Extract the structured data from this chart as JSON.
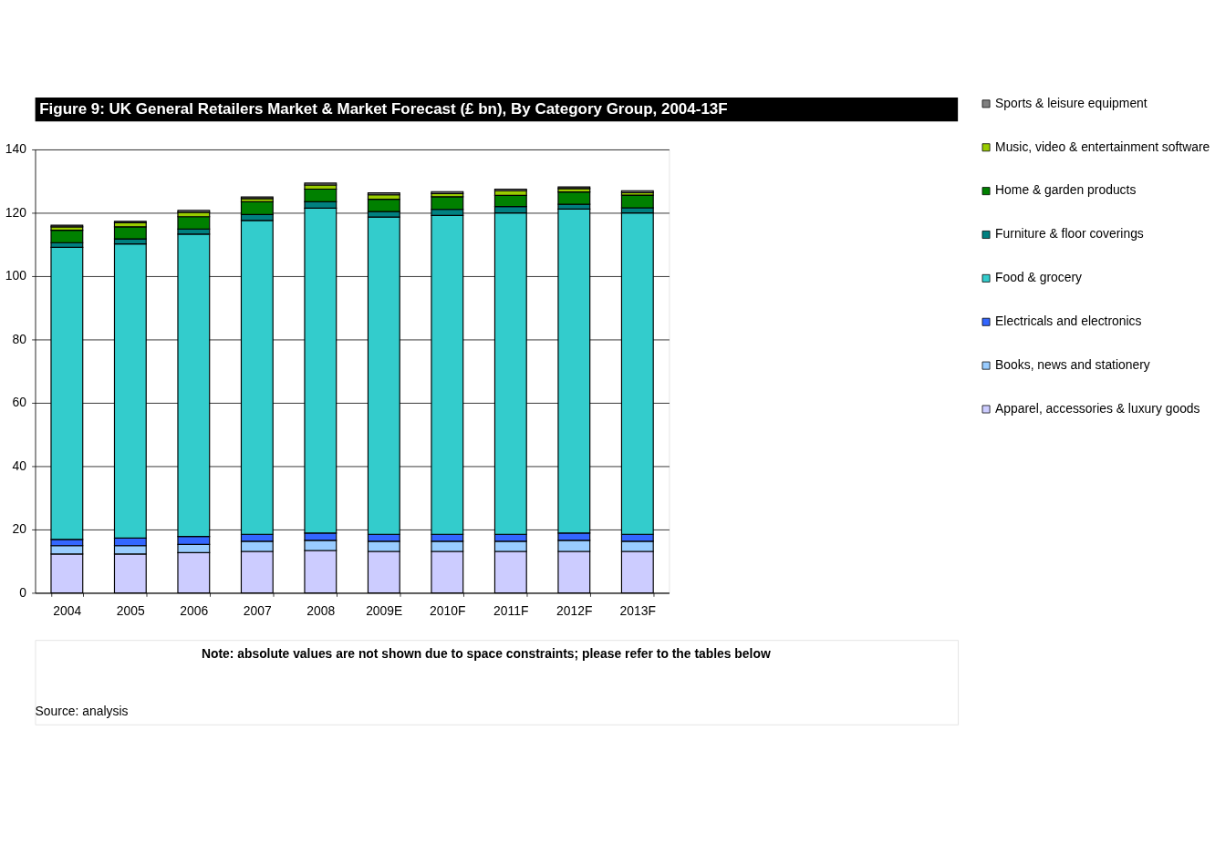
{
  "chart_data": {
    "type": "bar",
    "title": "Figure 9: UK General Retailers Market & Market Forecast (£ bn), By Category Group, 2004-13F",
    "categories": [
      "2004",
      "2005",
      "2006",
      "2007",
      "2008",
      "2009E",
      "2010F",
      "2011F",
      "2012F",
      "2013F"
    ],
    "stacked": true,
    "series": [
      {
        "name": "Apparel, accessories & luxury goods",
        "color": "#ccccff",
        "values": [
          12.3,
          12.3,
          12.7,
          13.1,
          13.4,
          13.1,
          13.1,
          13.1,
          13.1,
          13.1
        ]
      },
      {
        "name": "Books, news and stationery",
        "color": "#99ccff",
        "values": [
          2.6,
          2.6,
          2.6,
          3.2,
          3.2,
          3.2,
          3.2,
          3.2,
          3.5,
          3.2
        ]
      },
      {
        "name": "Electricals and electronics",
        "color": "#3366ff",
        "values": [
          2.0,
          2.4,
          2.5,
          2.2,
          2.3,
          2.2,
          2.2,
          2.2,
          2.3,
          2.2
        ]
      },
      {
        "name": "Food & grocery",
        "color": "#33cccc",
        "values": [
          92.2,
          92.9,
          95.5,
          99.1,
          102.6,
          100.2,
          100.7,
          101.5,
          102.3,
          101.5
        ]
      },
      {
        "name": "Furniture & floor coverings",
        "color": "#008080",
        "values": [
          1.5,
          1.6,
          1.6,
          1.9,
          2.0,
          1.7,
          1.9,
          2.0,
          1.5,
          1.6
        ]
      },
      {
        "name": "Home & garden products",
        "color": "#008000",
        "values": [
          3.9,
          3.8,
          3.9,
          4.0,
          4.0,
          3.9,
          4.0,
          3.5,
          3.9,
          4.0
        ]
      },
      {
        "name": "Music, video & entertainment software",
        "color": "#99cc00",
        "values": [
          1.1,
          1.3,
          1.4,
          1.0,
          1.3,
          1.4,
          1.0,
          1.5,
          1.1,
          0.8
        ]
      },
      {
        "name": "Sports & leisure equipment",
        "color": "#808080",
        "values": [
          0.5,
          0.4,
          0.6,
          0.5,
          0.6,
          0.6,
          0.6,
          0.5,
          0.5,
          0.6
        ]
      }
    ],
    "ylim": [
      0,
      140
    ],
    "yticks": [
      0,
      20,
      40,
      60,
      80,
      100,
      120,
      140
    ],
    "grid": "y",
    "legend": "right",
    "annotations": [
      "Note: absolute values are not shown due to space constraints; please refer to the tables below",
      "Source: analysis"
    ]
  }
}
